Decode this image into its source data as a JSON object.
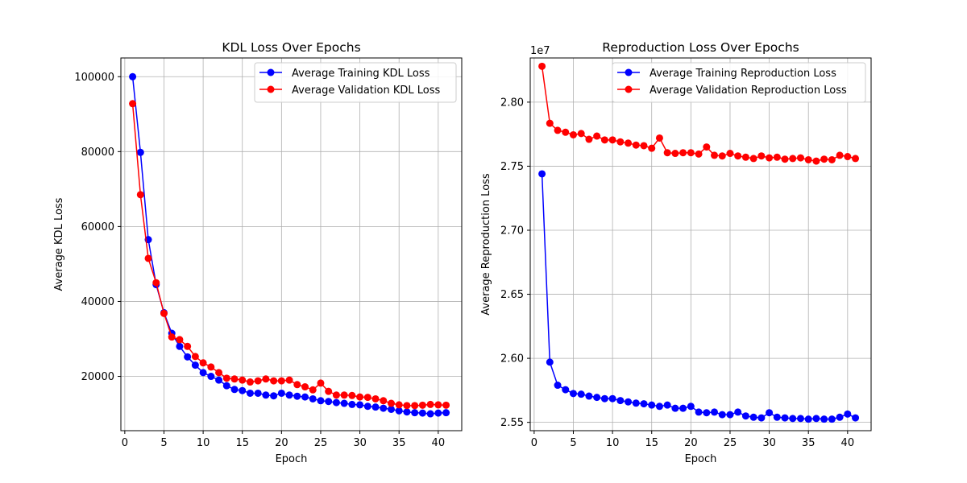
{
  "chart_data": [
    {
      "type": "line",
      "title": "KDL Loss Over Epochs",
      "xlabel": "Epoch",
      "ylabel": "Average KDL Loss",
      "xlim": [
        -0.5,
        43
      ],
      "ylim": [
        5500,
        105000
      ],
      "xticks": [
        0,
        5,
        10,
        15,
        20,
        25,
        30,
        35,
        40
      ],
      "yticks": [
        20000,
        40000,
        60000,
        80000,
        100000
      ],
      "ytick_labels": [
        "20000",
        "40000",
        "60000",
        "80000",
        "100000"
      ],
      "offset_text": "",
      "grid": true,
      "legend_position": "top-right",
      "x": [
        1,
        2,
        3,
        4,
        5,
        6,
        7,
        8,
        9,
        10,
        11,
        12,
        13,
        14,
        15,
        16,
        17,
        18,
        19,
        20,
        21,
        22,
        23,
        24,
        25,
        26,
        27,
        28,
        29,
        30,
        31,
        32,
        33,
        34,
        35,
        36,
        37,
        38,
        39,
        40,
        41
      ],
      "series": [
        {
          "name": "Average Training KDL Loss",
          "color": "#0000ff",
          "values": [
            100000,
            79800,
            56500,
            44500,
            37000,
            31500,
            28000,
            25200,
            23000,
            21000,
            20000,
            19000,
            17500,
            16500,
            16200,
            15500,
            15500,
            15000,
            14800,
            15500,
            15000,
            14700,
            14500,
            14000,
            13500,
            13300,
            13000,
            12800,
            12500,
            12400,
            12000,
            11800,
            11500,
            11200,
            10800,
            10500,
            10300,
            10200,
            10000,
            10200,
            10300
          ]
        },
        {
          "name": "Average Validation KDL Loss",
          "color": "#ff0000",
          "values": [
            92800,
            68500,
            51500,
            45000,
            36800,
            30500,
            29800,
            28000,
            25300,
            23600,
            22500,
            21000,
            19500,
            19300,
            19000,
            18500,
            18800,
            19300,
            18800,
            18800,
            19000,
            17800,
            17200,
            16400,
            18200,
            16000,
            15000,
            15000,
            14900,
            14500,
            14400,
            14000,
            13500,
            12800,
            12400,
            12200,
            12200,
            12300,
            12500,
            12400,
            12300
          ]
        }
      ]
    },
    {
      "type": "line",
      "title": "Reproduction Loss Over Epochs",
      "xlabel": "Epoch",
      "ylabel": "Average Reproduction Loss",
      "xlim": [
        -0.5,
        43
      ],
      "ylim": [
        2.5435,
        2.8345
      ],
      "xticks": [
        0,
        5,
        10,
        15,
        20,
        25,
        30,
        35,
        40
      ],
      "yticks": [
        2.55,
        2.6,
        2.65,
        2.7,
        2.75,
        2.8
      ],
      "ytick_labels": [
        "2.55",
        "2.60",
        "2.65",
        "2.70",
        "2.75",
        "2.80"
      ],
      "offset_text": "1e7",
      "grid": true,
      "legend_position": "top-right",
      "x": [
        1,
        2,
        3,
        4,
        5,
        6,
        7,
        8,
        9,
        10,
        11,
        12,
        13,
        14,
        15,
        16,
        17,
        18,
        19,
        20,
        21,
        22,
        23,
        24,
        25,
        26,
        27,
        28,
        29,
        30,
        31,
        32,
        33,
        34,
        35,
        36,
        37,
        38,
        39,
        40,
        41
      ],
      "series": [
        {
          "name": "Average Training Reproduction Loss",
          "color": "#0000ff",
          "values": [
            2.744,
            2.597,
            2.579,
            2.5755,
            2.5725,
            2.572,
            2.5705,
            2.5695,
            2.5685,
            2.5685,
            2.567,
            2.566,
            2.565,
            2.5645,
            2.5635,
            2.5625,
            2.5635,
            2.561,
            2.561,
            2.5625,
            2.558,
            2.5575,
            2.558,
            2.556,
            2.556,
            2.558,
            2.555,
            2.554,
            2.5535,
            2.5575,
            2.554,
            2.5535,
            2.553,
            2.553,
            2.5525,
            2.553,
            2.5525,
            2.5525,
            2.554,
            2.5565,
            2.5535
          ]
        },
        {
          "name": "Average Validation Reproduction Loss",
          "color": "#ff0000",
          "values": [
            2.828,
            2.7835,
            2.778,
            2.7765,
            2.7745,
            2.7755,
            2.771,
            2.7735,
            2.7705,
            2.7705,
            2.769,
            2.768,
            2.7665,
            2.766,
            2.764,
            2.772,
            2.7605,
            2.76,
            2.7605,
            2.7605,
            2.7595,
            2.765,
            2.7585,
            2.758,
            2.76,
            2.758,
            2.757,
            2.756,
            2.758,
            2.7565,
            2.757,
            2.7555,
            2.756,
            2.7565,
            2.755,
            2.754,
            2.7555,
            2.755,
            2.7585,
            2.7575,
            2.756
          ]
        }
      ]
    }
  ]
}
